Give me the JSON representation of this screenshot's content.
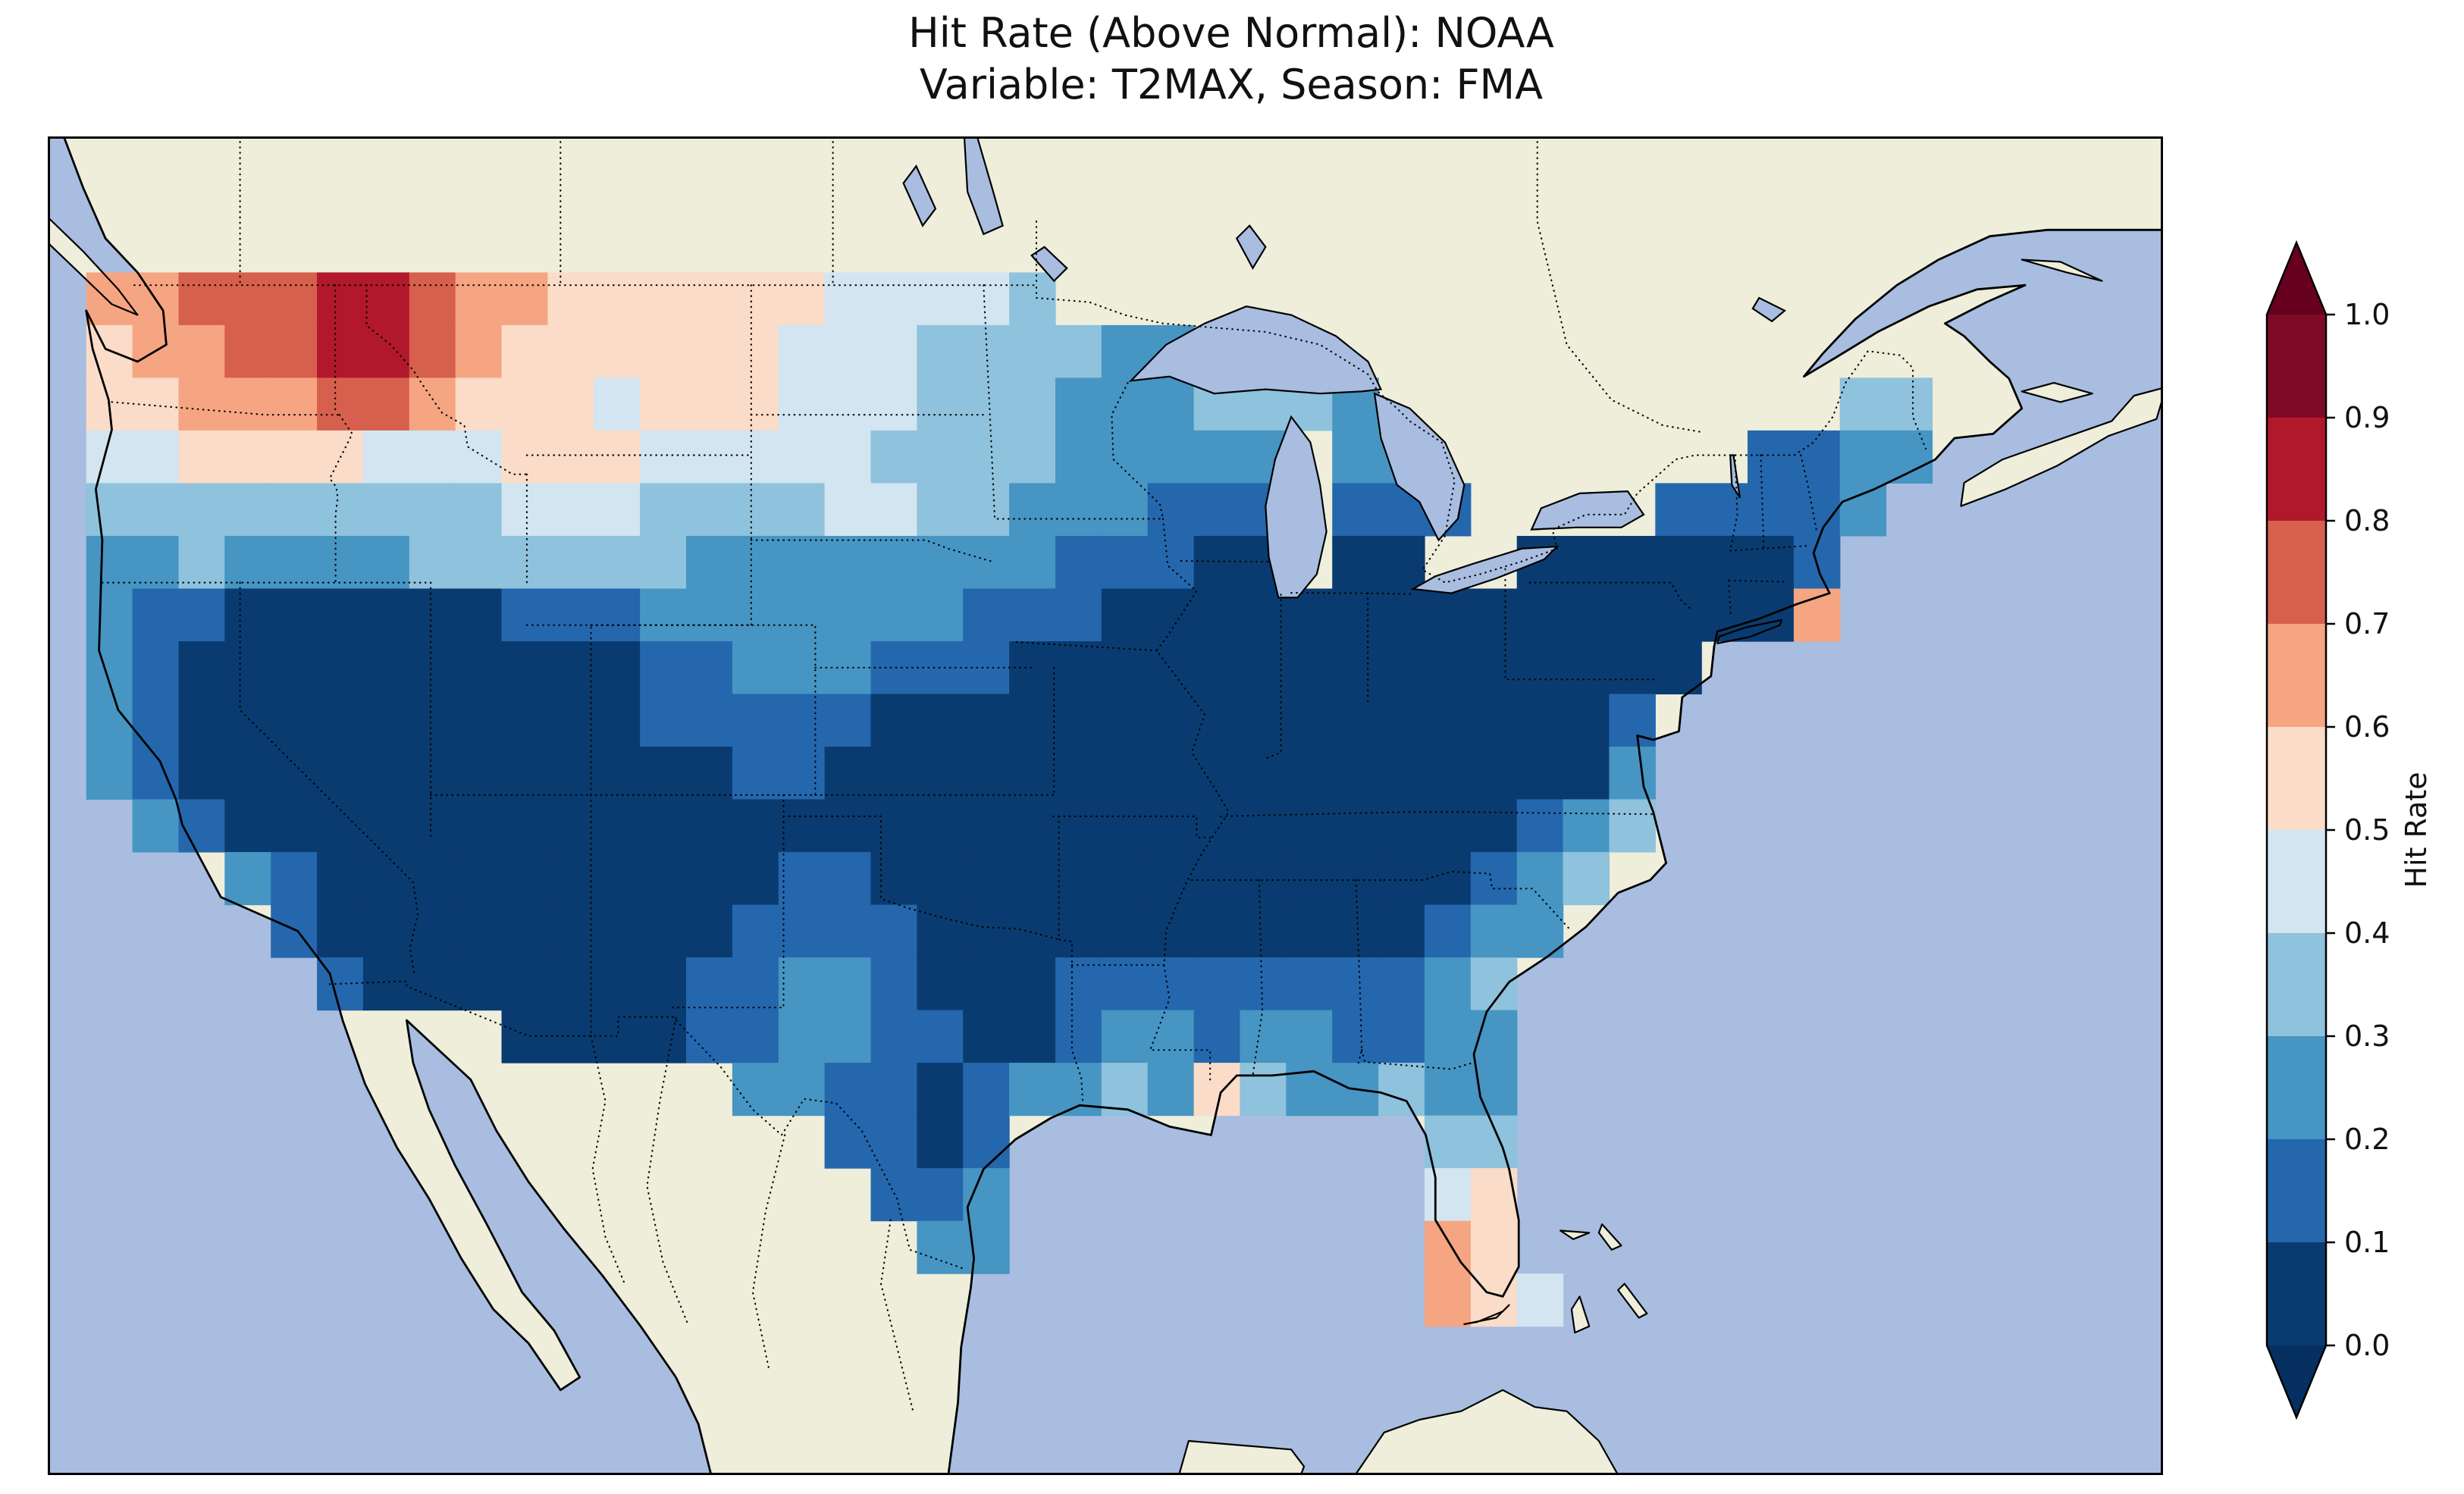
{
  "title": {
    "line1": "Hit Rate (Above Normal): NOAA",
    "line2": "Variable: T2MAX, Season: FMA"
  },
  "colorbar": {
    "label": "Hit Rate",
    "ticks": [
      "1.0",
      "0.9",
      "0.8",
      "0.7",
      "0.6",
      "0.5",
      "0.4",
      "0.3",
      "0.2",
      "0.1",
      "0.0"
    ],
    "bin_colors_low_to_high": [
      "#0a3b70",
      "#2467ad",
      "#4695c3",
      "#8fc2dc",
      "#d2e5f0",
      "#fadcc8",
      "#f5a582",
      "#d6604d",
      "#b2182b",
      "#7f0a26"
    ],
    "under_arrow_color": "#053061",
    "over_arrow_color": "#67001f"
  },
  "map_colors": {
    "ocean": "#a8bde0",
    "land": "#eeeedb",
    "coastline": "#000000",
    "borders": "#000000"
  },
  "chart_data": {
    "type": "heatmap",
    "title": "Hit Rate (Above Normal): NOAA — Variable: T2MAX, Season: FMA",
    "metric": "Hit Rate (Above Normal)",
    "dataset": "NOAA",
    "variable": "T2MAX",
    "season": "FMA",
    "value_label": "Hit Rate",
    "value_range": [
      0.0,
      1.0
    ],
    "bin_width": 0.1,
    "colormap": "RdBu_r discrete (dark blue = 0.0 low hit rate, dark red = 1.0 high hit rate)",
    "legend_position": "right colorbar with over/under arrows",
    "grid_encoding": "Each row string is one latitude band (north to south) across the contiguous US, 40 columns west to east. Digit d means hit-rate bin [d/10,(d+1)/10); '.' means no data (outside the US grid).",
    "approx_lon_range_deg": [
      -124.8,
      -67.2
    ],
    "approx_lat_range_deg": [
      24.5,
      49.3
    ],
    "rows": [
      "667778876655555544443...................",
      "566778876555555444333322................",
      "5566677655545554443332223332..........33",
      "44555544455544444333322222.22.......1122",
      "33333333344433334433222111.111....11112.",
      "22322223333332222222211100.00..0000001..",
      "21100000011122222221110000000000000006..",
      "21000000000011222111000000000000000.....",
      "2100000000001111100000000000000001......",
      "2100000000000011000000000000000002......",
      ".210000000000000000000000000000123......",
      "...210000000000110000000000000123.......",
      "....1000000000111100000000000122........",
      ".....10000000112210001111111123.........",
      ".........0000112211001221221122.........",
      "..............22110122325322322.........",
      "................1101.........33.........",
      ".................112.........45.........",
      "..................22.........65.........",
      ".............................654........"
    ],
    "summary": [
      "Very low hit rates (0.0-0.1, dark navy) cover most of the Southwest, southern Plains, Midwest, Ohio Valley, Southeast interior and Mid-Atlantic/Northeast.",
      "High hit rates (0.6-0.85, orange/red) appear in Washington, the Idaho panhandle and northwest Montana.",
      "Pale pink/white values (0.4-0.6) run along the northern tier (Montana, Dakotas) and scattered on the Gulf coast fringe.",
      "Light-blue values (0.2-0.4) cover the west coast, upper Midwest, west Texas, coastal Carolinas and Florida, with small pink/orange cells in south Florida."
    ]
  }
}
